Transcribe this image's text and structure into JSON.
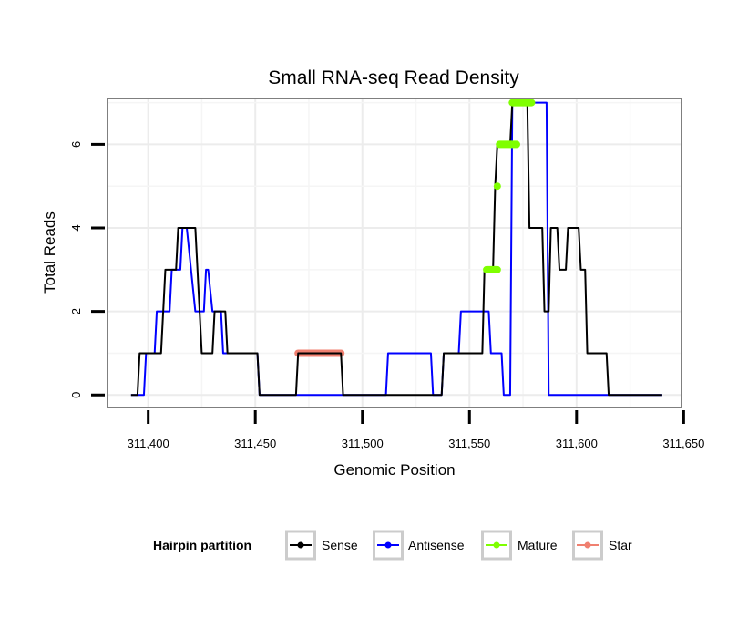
{
  "chart_data": {
    "type": "line",
    "title": "Small RNA-seq Read Density",
    "xlabel": "Genomic Position",
    "ylabel": "Total Reads",
    "xlim": [
      311381,
      311649
    ],
    "ylim": [
      -0.3,
      7.1
    ],
    "x_ticks": [
      {
        "value": 311400,
        "label": "311,400"
      },
      {
        "value": 311450,
        "label": "311,450"
      },
      {
        "value": 311500,
        "label": "311,500"
      },
      {
        "value": 311550,
        "label": "311,550"
      },
      {
        "value": 311600,
        "label": "311,600"
      },
      {
        "value": 311650,
        "label": "311,650"
      }
    ],
    "y_ticks": [
      {
        "value": 0,
        "label": "0"
      },
      {
        "value": 2,
        "label": "2"
      },
      {
        "value": 4,
        "label": "4"
      },
      {
        "value": 6,
        "label": "6"
      }
    ],
    "grid": true,
    "legend": {
      "title": "Hairpin partition",
      "position": "bottom",
      "entries": [
        "Sense",
        "Antisense",
        "Mature",
        "Star"
      ]
    },
    "series": [
      {
        "name": "Sense",
        "color": "#000000",
        "points": [
          [
            311392,
            0
          ],
          [
            311395,
            0
          ],
          [
            311396,
            1
          ],
          [
            311406,
            1
          ],
          [
            311407,
            2
          ],
          [
            311408,
            3
          ],
          [
            311413,
            3
          ],
          [
            311414,
            4
          ],
          [
            311419,
            4
          ],
          [
            311420,
            4
          ],
          [
            311422,
            4
          ],
          [
            311423,
            3
          ],
          [
            311424,
            2
          ],
          [
            311425,
            1
          ],
          [
            311430,
            1
          ],
          [
            311431,
            2
          ],
          [
            311436,
            2
          ],
          [
            311437,
            1
          ],
          [
            311451,
            1
          ],
          [
            311452,
            0
          ],
          [
            311469,
            0
          ],
          [
            311470,
            1
          ],
          [
            311490,
            1
          ],
          [
            311491,
            0
          ],
          [
            311537,
            0
          ],
          [
            311538,
            1
          ],
          [
            311556,
            1
          ],
          [
            311557,
            3
          ],
          [
            311561,
            3
          ],
          [
            311562,
            5
          ],
          [
            311563,
            6
          ],
          [
            311569,
            6
          ],
          [
            311570,
            7
          ],
          [
            311577,
            7
          ],
          [
            311578,
            4
          ],
          [
            311584,
            4
          ],
          [
            311585,
            2
          ],
          [
            311587,
            2
          ],
          [
            311588,
            4
          ],
          [
            311591,
            4
          ],
          [
            311592,
            3
          ],
          [
            311595,
            3
          ],
          [
            311596,
            4
          ],
          [
            311601,
            4
          ],
          [
            311602,
            3
          ],
          [
            311604,
            3
          ],
          [
            311605,
            1
          ],
          [
            311614,
            1
          ],
          [
            311615,
            0
          ],
          [
            311640,
            0
          ]
        ]
      },
      {
        "name": "Antisense",
        "color": "#0000ff",
        "points": [
          [
            311392,
            0
          ],
          [
            311398,
            0
          ],
          [
            311399,
            1
          ],
          [
            311403,
            1
          ],
          [
            311404,
            2
          ],
          [
            311410,
            2
          ],
          [
            311411,
            3
          ],
          [
            311415,
            3
          ],
          [
            311416,
            4
          ],
          [
            311418,
            4
          ],
          [
            311420,
            3
          ],
          [
            311422,
            2
          ],
          [
            311426,
            2
          ],
          [
            311427,
            3
          ],
          [
            311428,
            3
          ],
          [
            311430,
            2
          ],
          [
            311434,
            2
          ],
          [
            311435,
            1
          ],
          [
            311451,
            1
          ],
          [
            311452,
            0
          ],
          [
            311511,
            0
          ],
          [
            311512,
            1
          ],
          [
            311532,
            1
          ],
          [
            311533,
            0
          ],
          [
            311537,
            0
          ],
          [
            311538,
            1
          ],
          [
            311545,
            1
          ],
          [
            311546,
            2
          ],
          [
            311559,
            2
          ],
          [
            311560,
            1
          ],
          [
            311565,
            1
          ],
          [
            311566,
            0
          ],
          [
            311569,
            0
          ],
          [
            311570,
            7
          ],
          [
            311586,
            7
          ],
          [
            311587,
            0
          ],
          [
            311640,
            0
          ]
        ]
      },
      {
        "name": "Mature",
        "color": "#7fff00",
        "segments": [
          {
            "x_start": 311558,
            "x_end": 311563,
            "y": 3
          },
          {
            "x_start": 311563,
            "x_end": 311563,
            "y": 5
          },
          {
            "x_start": 311564,
            "x_end": 311572,
            "y": 6
          },
          {
            "x_start": 311570,
            "x_end": 311579,
            "y": 7
          }
        ]
      },
      {
        "name": "Star",
        "color": "#f08070",
        "segments": [
          {
            "x_start": 311470,
            "x_end": 311490,
            "y": 1
          }
        ]
      }
    ]
  }
}
